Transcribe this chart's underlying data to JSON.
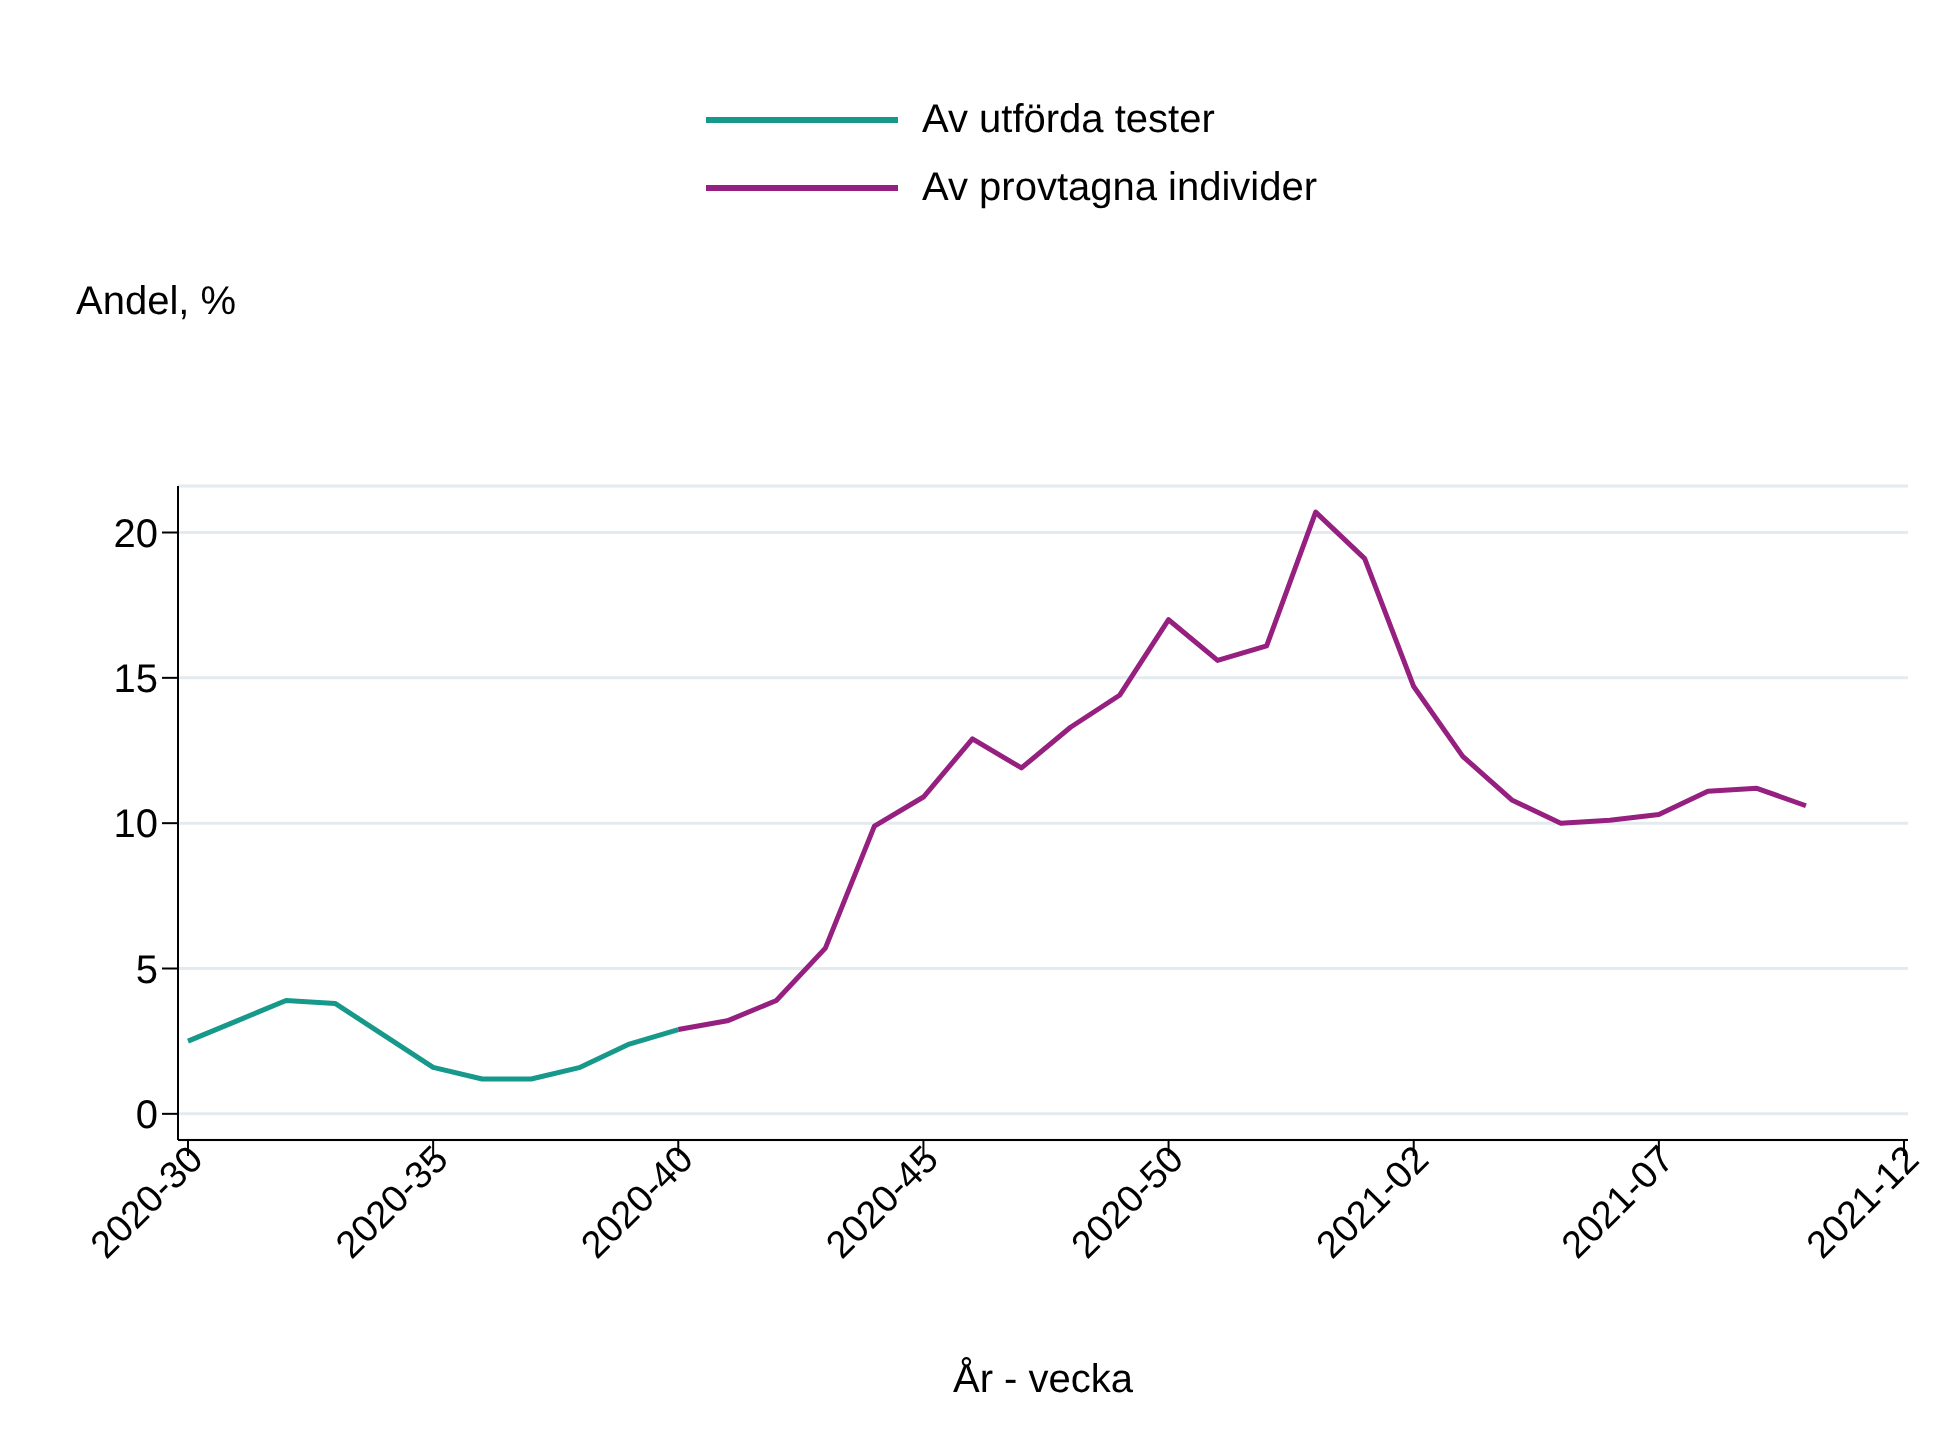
{
  "chart_data": {
    "type": "line",
    "xlabel": "År - vecka",
    "ylabel": "Andel, %",
    "categories": [
      "2020-30",
      null,
      null,
      null,
      null,
      "2020-35",
      null,
      null,
      null,
      null,
      "2020-40",
      null,
      null,
      null,
      null,
      "2020-45",
      null,
      null,
      null,
      null,
      "2020-50",
      null,
      null,
      null,
      null,
      "2021-02",
      null,
      null,
      null,
      null,
      "2021-07",
      null,
      null,
      null,
      null,
      "2021-12"
    ],
    "series": [
      {
        "name": "Av utförda tester",
        "color": "#16998a",
        "values": [
          2.5,
          3.2,
          3.9,
          3.8,
          2.7,
          1.6,
          1.2,
          1.2,
          1.6,
          2.4,
          2.9,
          null,
          null,
          null,
          null,
          null,
          null,
          null,
          null,
          null,
          null,
          null,
          null,
          null,
          null,
          null,
          null,
          null,
          null,
          null,
          null,
          null,
          null,
          null,
          null,
          null
        ]
      },
      {
        "name": "Av provtagna individer",
        "color": "#96207f",
        "values": [
          null,
          null,
          null,
          null,
          null,
          null,
          null,
          null,
          null,
          null,
          2.9,
          3.2,
          3.9,
          5.7,
          9.9,
          10.9,
          12.9,
          11.9,
          13.3,
          14.4,
          17.0,
          15.6,
          16.1,
          20.7,
          19.1,
          14.7,
          12.3,
          10.8,
          10.0,
          10.1,
          10.3,
          11.1,
          11.2,
          10.6,
          null,
          null
        ]
      }
    ],
    "ylim": [
      -0.9,
      21.6
    ],
    "yticks": [
      0,
      5,
      10,
      15,
      20
    ],
    "grid": "y",
    "legend": "top",
    "marker": "none",
    "line_style": "solid"
  }
}
